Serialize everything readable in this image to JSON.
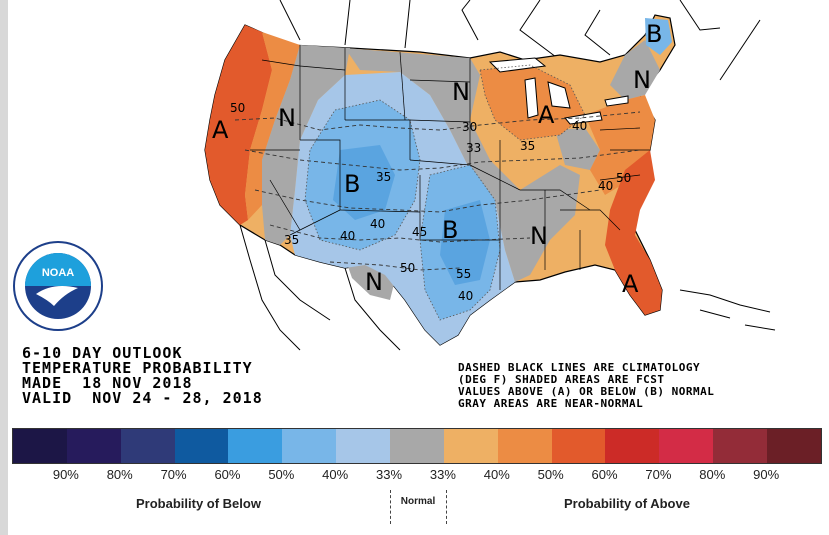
{
  "map_labels": [
    {
      "text": "A",
      "kind": "category"
    },
    {
      "text": "N",
      "kind": "category"
    },
    {
      "text": "B",
      "kind": "category"
    },
    {
      "text": "B",
      "kind": "category"
    },
    {
      "text": "N",
      "kind": "category"
    },
    {
      "text": "N",
      "kind": "category"
    },
    {
      "text": "A",
      "kind": "category"
    },
    {
      "text": "B",
      "kind": "category"
    },
    {
      "text": "N",
      "kind": "category"
    },
    {
      "text": "A",
      "kind": "category"
    },
    {
      "text": "N",
      "kind": "category"
    },
    {
      "text": "50",
      "kind": "contour"
    },
    {
      "text": "35",
      "kind": "contour"
    },
    {
      "text": "35",
      "kind": "contour"
    },
    {
      "text": "40",
      "kind": "contour"
    },
    {
      "text": "40",
      "kind": "contour"
    },
    {
      "text": "45",
      "kind": "contour"
    },
    {
      "text": "50",
      "kind": "contour"
    },
    {
      "text": "55",
      "kind": "contour"
    },
    {
      "text": "40",
      "kind": "contour"
    },
    {
      "text": "30",
      "kind": "contour"
    },
    {
      "text": "33",
      "kind": "contour"
    },
    {
      "text": "35",
      "kind": "contour"
    },
    {
      "text": "40",
      "kind": "contour"
    },
    {
      "text": "40",
      "kind": "contour"
    },
    {
      "text": "50",
      "kind": "contour"
    }
  ],
  "outlook": {
    "line1": "6-10 DAY OUTLOOK",
    "line2": "TEMPERATURE PROBABILITY",
    "line3": "MADE  18 NOV 2018",
    "line4": "VALID  NOV 24 - 28, 2018"
  },
  "notes": {
    "line1": "DASHED BLACK LINES ARE CLIMATOLOGY",
    "line2": "(DEG F) SHADED AREAS ARE FCST",
    "line3": "VALUES ABOVE (A) OR BELOW (B) NORMAL",
    "line4": "GRAY AREAS ARE NEAR-NORMAL"
  },
  "logo": {
    "text": "NOAA",
    "ring_text": "NATIONAL OCEANIC AND ATMOSPHERIC ADMINISTRATION · U.S. DEPARTMENT OF COMMERCE"
  },
  "legend": {
    "colors": [
      "#1c1646",
      "#261b5c",
      "#2f3a78",
      "#0f5aa0",
      "#3a9de0",
      "#78b6e8",
      "#a6c6e8",
      "#a8a8a8",
      "#eeb064",
      "#ec8c44",
      "#e25a2c",
      "#cc2b27",
      "#d32c46",
      "#932c38",
      "#6b1f26"
    ],
    "labels": [
      "90%",
      "80%",
      "70%",
      "60%",
      "50%",
      "40%",
      "33%",
      "33%",
      "40%",
      "50%",
      "60%",
      "70%",
      "80%",
      "90%"
    ],
    "below_caption": "Probability of Below",
    "normal_caption": "Normal",
    "above_caption": "Probability of Above"
  },
  "colors": {
    "above_dark": "#d94a28",
    "above_mid": "#e8843c",
    "above_light": "#eeb064",
    "normal": "#a8a8a8",
    "below_light": "#a6c6e8",
    "below_mid": "#78b6e8",
    "below_dark": "#5aa4e0"
  }
}
